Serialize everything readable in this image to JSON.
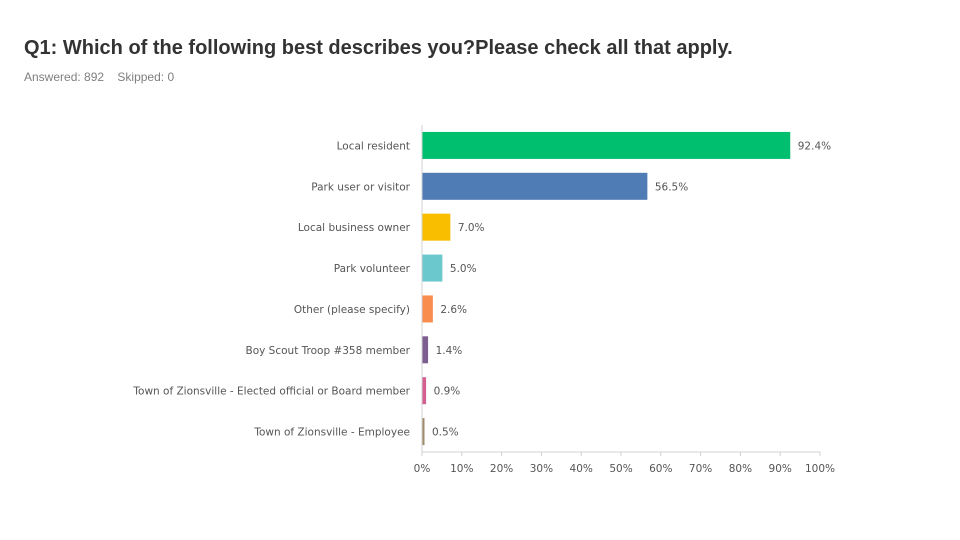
{
  "header": {
    "title": "Q1: Which of the following best describes you?Please check all that apply.",
    "answered": "Answered: 892",
    "skipped": "Skipped: 0"
  },
  "chart_data": {
    "type": "bar",
    "orientation": "horizontal",
    "categories": [
      "Local resident",
      "Park user or visitor",
      "Local business owner",
      "Park volunteer",
      "Other (please specify)",
      "Boy Scout Troop #358 member",
      "Town of Zionsville - Elected official or Board member",
      "Town of Zionsville - Employee"
    ],
    "values": [
      92.4,
      56.5,
      7.0,
      5.0,
      2.6,
      1.4,
      0.9,
      0.5
    ],
    "value_labels": [
      "92.4%",
      "56.5%",
      "7.0%",
      "5.0%",
      "2.6%",
      "1.4%",
      "0.9%",
      "0.5%"
    ],
    "colors": [
      "#00BF6F",
      "#507CB6",
      "#F9BE00",
      "#6BC8CD",
      "#F88D4F",
      "#7D5E90",
      "#D25F90",
      "#A08C6C"
    ],
    "xlim": [
      0,
      100
    ],
    "xticks": [
      0,
      10,
      20,
      30,
      40,
      50,
      60,
      70,
      80,
      90,
      100
    ],
    "xtick_labels": [
      "0%",
      "10%",
      "20%",
      "30%",
      "40%",
      "50%",
      "60%",
      "70%",
      "80%",
      "90%",
      "100%"
    ],
    "grid": false,
    "legend": "none"
  }
}
